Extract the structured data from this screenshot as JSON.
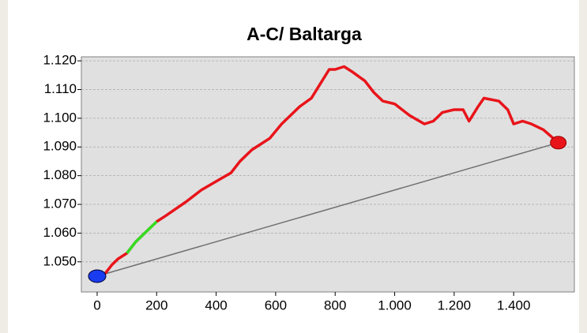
{
  "chart_data": {
    "type": "line",
    "title": "A-C/ Baltarga",
    "x": [
      0,
      20,
      50,
      70,
      100,
      130,
      160,
      200,
      230,
      300,
      350,
      400,
      450,
      480,
      520,
      550,
      580,
      620,
      650,
      680,
      720,
      750,
      780,
      800,
      830,
      860,
      900,
      930,
      960,
      1000,
      1050,
      1100,
      1130,
      1160,
      1200,
      1230,
      1250,
      1280,
      1300,
      1350,
      1380,
      1400,
      1430,
      1460,
      1500,
      1550
    ],
    "series": [
      {
        "color": "#e8141a",
        "values": [
          1.045,
          1.045,
          1.049,
          1.051,
          1.053,
          1.057,
          1.06,
          1.064,
          1.066,
          1.071,
          1.075,
          1.078,
          1.081,
          1.085,
          1.089,
          1.091,
          1.093,
          1.098,
          1.101,
          1.104,
          1.107,
          1.112,
          1.117,
          1.117,
          1.118,
          1.116,
          1.113,
          1.109,
          1.106,
          1.105,
          1.101,
          1.098,
          1.099,
          1.102,
          1.103,
          1.103,
          1.099,
          1.104,
          1.107,
          1.106,
          1.103,
          1.098,
          1.099,
          1.098,
          1.096,
          1.0915
        ]
      },
      {
        "color": "#33dd22",
        "values": [
          null,
          null,
          null,
          null,
          1.053,
          1.057,
          1.06,
          1.064,
          null,
          null,
          null,
          null,
          null,
          null,
          null,
          null,
          null,
          null,
          null,
          null,
          null,
          null,
          null,
          null,
          null,
          null,
          null,
          null,
          null,
          null,
          null,
          null,
          null,
          null,
          null,
          null,
          null,
          null,
          null,
          null,
          null,
          null,
          null,
          null,
          null,
          null
        ]
      }
    ],
    "xlim": [
      -53,
      1604
    ],
    "ylim": [
      1.0395,
      1.1214
    ],
    "xticks": [
      0,
      200,
      400,
      600,
      800,
      {
        "value": 1000,
        "label": "1.000"
      },
      {
        "value": 1200,
        "label": "1.200"
      },
      {
        "value": 1400,
        "label": "1.400"
      }
    ],
    "yticks": [
      {
        "value": 1.05,
        "label": "1.050"
      },
      {
        "value": 1.06,
        "label": "1.060"
      },
      {
        "value": 1.07,
        "label": "1.070"
      },
      {
        "value": 1.08,
        "label": "1.080"
      },
      {
        "value": 1.09,
        "label": "1.090"
      },
      {
        "value": 1.1,
        "label": "1.100"
      },
      {
        "value": 1.11,
        "label": "1.110"
      },
      {
        "value": 1.12,
        "label": "1.120"
      }
    ],
    "grid": true
  }
}
